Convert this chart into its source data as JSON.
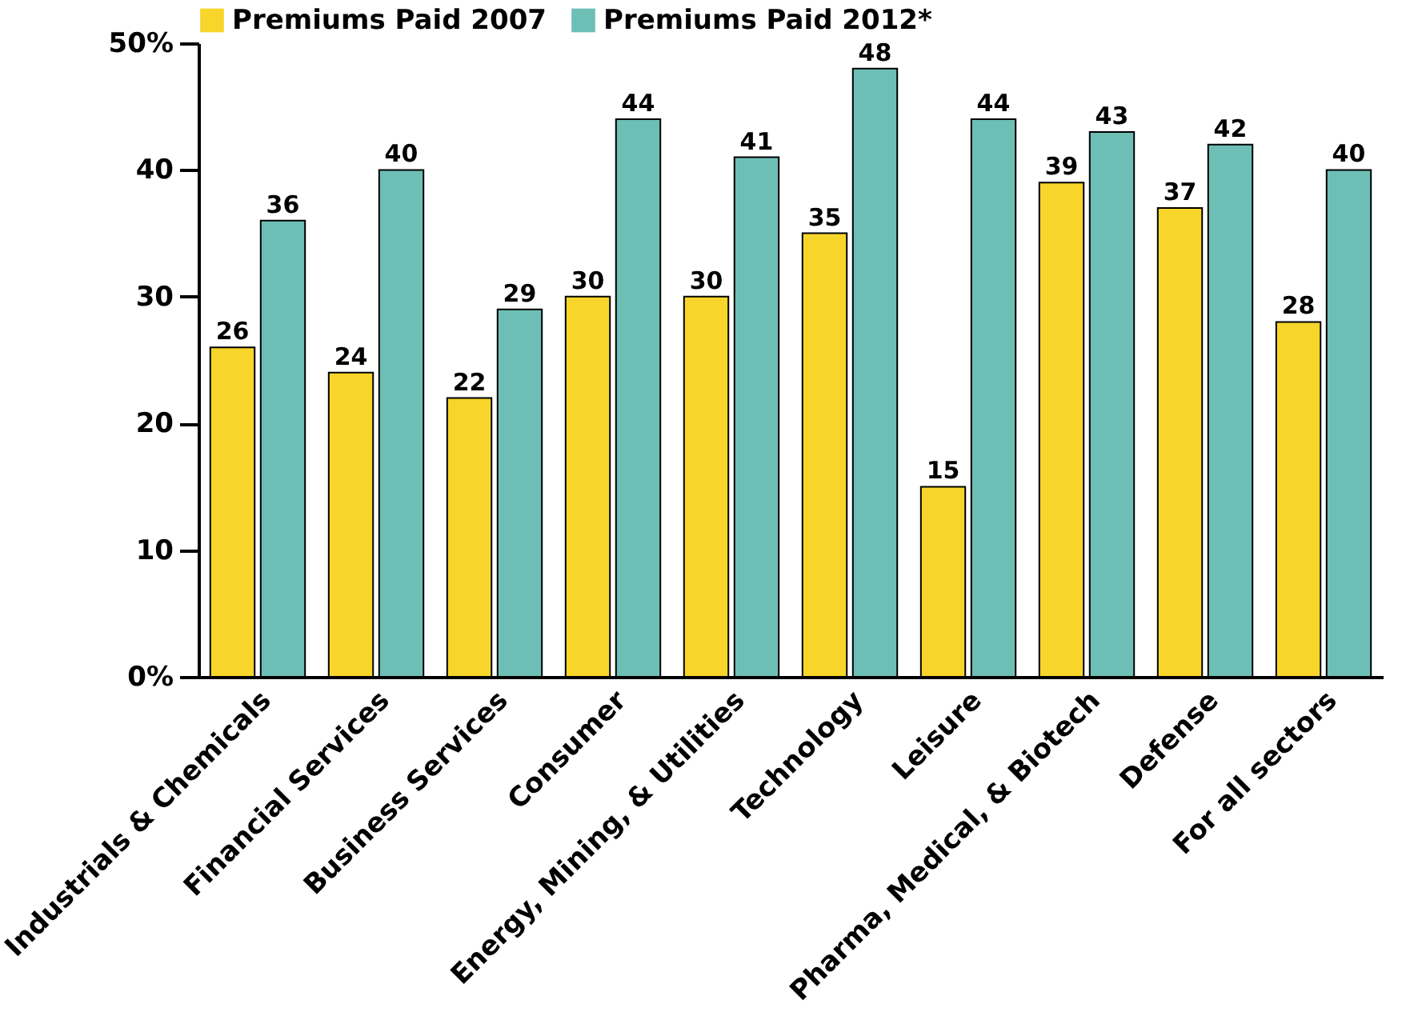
{
  "chart_data": {
    "type": "bar",
    "categories": [
      "Industrials & Chemicals",
      "Financial Services",
      "Business Services",
      "Consumer",
      "Energy, Mining, & Utilities",
      "Technology",
      "Leisure",
      "Pharma, Medical, & Biotech",
      "Defense",
      "For all sectors"
    ],
    "series": [
      {
        "name": "Premiums Paid 2007",
        "color": "#f7d52a",
        "values": [
          26,
          24,
          22,
          30,
          30,
          35,
          15,
          39,
          37,
          28
        ]
      },
      {
        "name": "Premiums Paid 2012*",
        "color": "#6dbfb5",
        "values": [
          36,
          40,
          29,
          44,
          41,
          48,
          44,
          43,
          42,
          40
        ]
      }
    ],
    "ylim": [
      0,
      50
    ],
    "yticks": [
      {
        "value": 0,
        "label": "0%"
      },
      10,
      20,
      30,
      40,
      {
        "value": 50,
        "label": "50%"
      }
    ],
    "data_labels": true,
    "legend": "top left",
    "grid": false
  }
}
